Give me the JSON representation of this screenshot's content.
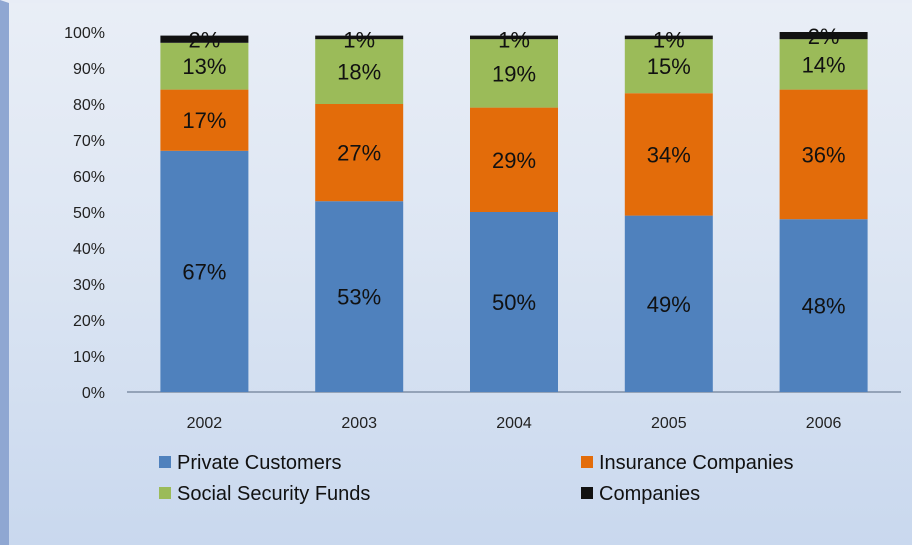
{
  "chart_data": {
    "type": "bar",
    "stacked": true,
    "categories": [
      "2002",
      "2003",
      "2004",
      "2005",
      "2006"
    ],
    "series": [
      {
        "name": "Private Customers",
        "color": "#4f81bd",
        "values": [
          67,
          53,
          50,
          49,
          48
        ],
        "labels": [
          "67%",
          "53%",
          "50%",
          "49%",
          "48%"
        ]
      },
      {
        "name": "Insurance Companies",
        "color": "#e36c0a",
        "values": [
          17,
          27,
          29,
          34,
          36
        ],
        "labels": [
          "17%",
          "27%",
          "29%",
          "34%",
          "36%"
        ]
      },
      {
        "name": "Social Security Funds",
        "color": "#9bbb59",
        "values": [
          13,
          18,
          19,
          15,
          14
        ],
        "labels": [
          "13%",
          "18%",
          "19%",
          "15%",
          "14%"
        ]
      },
      {
        "name": "Companies",
        "color": "#111111",
        "values": [
          2,
          1,
          1,
          1,
          2
        ],
        "labels": [
          "2%",
          "1%",
          "1%",
          "1%",
          "2%"
        ]
      }
    ],
    "y_ticks": [
      "0%",
      "10%",
      "20%",
      "30%",
      "40%",
      "50%",
      "60%",
      "70%",
      "80%",
      "90%",
      "100%"
    ],
    "ylim": [
      0,
      100
    ],
    "title": "",
    "xlabel": "",
    "ylabel": "",
    "grid": false,
    "legend": "bottom"
  }
}
